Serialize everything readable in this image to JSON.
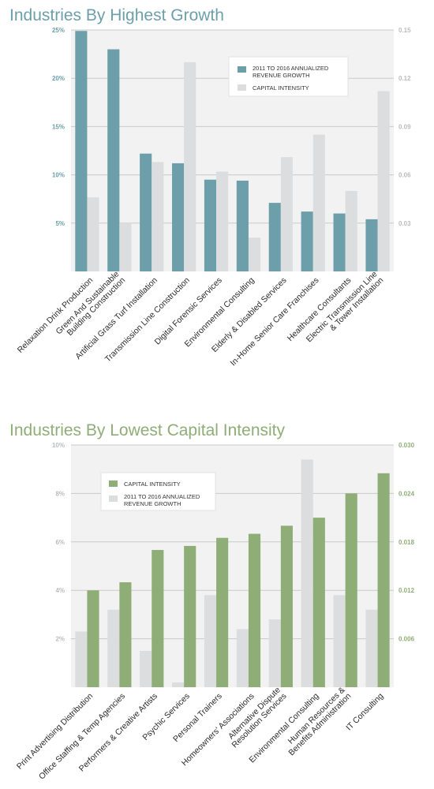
{
  "chart_data": [
    {
      "type": "bar",
      "title": "Industries By Highest Growth",
      "categories": [
        "Relaxation Drink Production",
        "Green And Sustainable\nBuilding Construction",
        "Artificial Grass Turf Installation",
        "Transmission Line Construction",
        "Digital Forensic Services",
        "Environmental Consulting",
        "Elderly & Disabled Services",
        "In-Home Senior Care Franchises",
        "Healthcare Consultants",
        "Electric Transmission Line\n& Tower Installation"
      ],
      "series": [
        {
          "name": "2011 TO 2016 ANNUALIZED REVENUE GROWTH",
          "axis": "left",
          "color": "#6d9fab",
          "values": [
            24.9,
            23.0,
            12.2,
            11.2,
            9.5,
            9.4,
            7.1,
            6.2,
            6.0,
            5.4
          ]
        },
        {
          "name": "CAPITAL INTENSITY",
          "axis": "right",
          "color": "#dcdddf",
          "values": [
            0.046,
            0.03,
            0.068,
            0.13,
            0.062,
            0.021,
            0.071,
            0.085,
            0.05,
            0.112
          ]
        }
      ],
      "ylim_left": [
        0,
        25
      ],
      "ylim_right": [
        0,
        0.15
      ],
      "yticks_left": [
        "5%",
        "10%",
        "15%",
        "20%",
        "25%"
      ],
      "yticks_left_values": [
        5,
        10,
        15,
        20,
        25
      ],
      "yticks_right": [
        "0.03",
        "0.06",
        "0.09",
        "0.12",
        "0.15"
      ],
      "yticks_right_values": [
        0.03,
        0.06,
        0.09,
        0.12,
        0.15
      ],
      "tick_color_left": "#6d9fab",
      "tick_color_right": "#b9bcbf",
      "title_color": "#6d9fab",
      "grid": true,
      "legend_position": "top-right",
      "legend": [
        {
          "label": "2011 TO 2016 ANNUALIZED\nREVENUE GROWTH",
          "color": "#6d9fab"
        },
        {
          "label": "CAPITAL INTENSITY",
          "color": "#dcdddf"
        }
      ],
      "bar_order": [
        "left",
        "right"
      ]
    },
    {
      "type": "bar",
      "title": "Industries By Lowest Capital Intensity",
      "categories": [
        "Print Advertising Distribution",
        "Office Staffing & Temp Agencies",
        "Performers & Creative Artists",
        "Psychic Services",
        "Personal Trainers",
        "Homeowners' Associations",
        "Alternative Dispute\nResolution Services",
        "Environmental Consulting",
        "Human Resources &\nBenefits Administration",
        "IT Consulting"
      ],
      "series": [
        {
          "name": "2011 TO 2016 ANNUALIZED REVENUE GROWTH",
          "axis": "left",
          "color": "#dcdddf",
          "values": [
            2.3,
            3.2,
            1.5,
            0.2,
            3.8,
            2.4,
            2.8,
            9.4,
            3.8,
            3.2
          ]
        },
        {
          "name": "CAPITAL INTENSITY",
          "axis": "right",
          "color": "#8fae77",
          "values": [
            0.012,
            0.013,
            0.017,
            0.0175,
            0.0185,
            0.019,
            0.02,
            0.021,
            0.024,
            0.0265
          ]
        }
      ],
      "ylim_left": [
        0,
        10
      ],
      "ylim_right": [
        0,
        0.03
      ],
      "yticks_left": [
        "2%",
        "4%",
        "6%",
        "8%",
        "10%"
      ],
      "yticks_left_values": [
        2,
        4,
        6,
        8,
        10
      ],
      "yticks_right": [
        "0.006",
        "0.012",
        "0.018",
        "0.024",
        "0.030"
      ],
      "yticks_right_values": [
        0.006,
        0.012,
        0.018,
        0.024,
        0.03
      ],
      "tick_color_left": "#b9bcbf",
      "tick_color_right": "#8fae77",
      "title_color": "#8fae77",
      "grid": true,
      "legend_position": "top-left",
      "legend": [
        {
          "label": "CAPITAL INTENSITY",
          "color": "#8fae77"
        },
        {
          "label": "2011 TO 2016 ANNUALIZED\nREVENUE GROWTH",
          "color": "#dcdddf"
        }
      ],
      "bar_order": [
        "left",
        "right"
      ]
    }
  ]
}
